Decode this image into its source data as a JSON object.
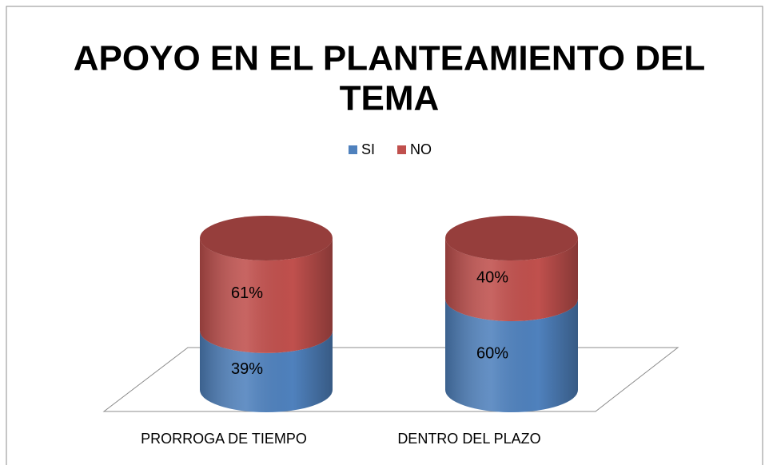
{
  "chart_data": {
    "type": "cylinder-stacked",
    "title": "APOYO EN EL PLANTEAMIENTO DEL TEMA",
    "title_lines": [
      "APOYO EN EL PLANTEAMIENTO DEL",
      "TEMA"
    ],
    "categories": [
      "PRORROGA DE TIEMPO",
      "DENTRO DEL PLAZO"
    ],
    "series": [
      {
        "name": "SI",
        "color": "#4f81bd",
        "values": [
          39,
          60
        ],
        "value_labels": [
          "39%",
          "60%"
        ]
      },
      {
        "name": "NO",
        "color": "#c0504d",
        "values": [
          61,
          40
        ],
        "value_labels": [
          "61%",
          "40%"
        ]
      }
    ],
    "legend": "top"
  }
}
